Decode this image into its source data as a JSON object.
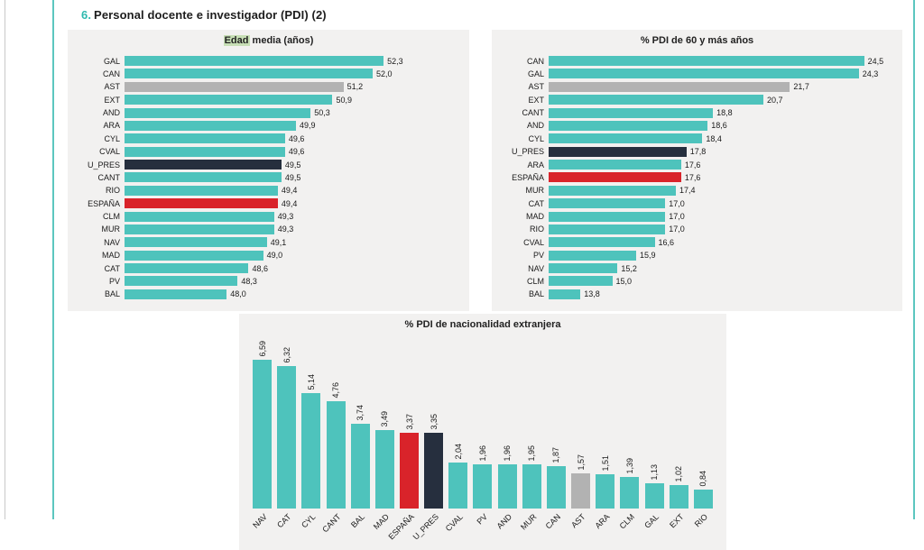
{
  "page": {
    "heading_number": "6.",
    "heading_text": "Personal docente e investigador (PDI) (2)"
  },
  "colors": {
    "teal": "#4ec3bc",
    "red": "#d9232a",
    "dark": "#262f3e",
    "gray": "#b2b2b2",
    "panel_bg": "#f2f1f0",
    "accent_teal": "#2fb9ae",
    "title_highlight_bg": "#c7dfb5"
  },
  "chart_data": [
    {
      "type": "bar",
      "orientation": "horizontal",
      "title": "Edad media (años)",
      "title_highlight": "Edad",
      "title_rest": " media (años)",
      "categories": [
        "GAL",
        "CAN",
        "AST",
        "EXT",
        "AND",
        "ARA",
        "CYL",
        "CVAL",
        "U_PRES",
        "CANT",
        "RIO",
        "ESPAÑA",
        "CLM",
        "MUR",
        "NAV",
        "MAD",
        "CAT",
        "PV",
        "BAL"
      ],
      "values": [
        52.3,
        52.0,
        51.2,
        50.9,
        50.3,
        49.9,
        49.6,
        49.6,
        49.5,
        49.5,
        49.4,
        49.4,
        49.3,
        49.3,
        49.1,
        49.0,
        48.6,
        48.3,
        48.0
      ],
      "value_labels": [
        "52,3",
        "52,0",
        "51,2",
        "50,9",
        "50,3",
        "49,9",
        "49,6",
        "49,6",
        "49,5",
        "49,5",
        "49,4",
        "49,4",
        "49,3",
        "49,3",
        "49,1",
        "49,0",
        "48,6",
        "48,3",
        "48,0"
      ],
      "bar_colors": [
        "teal",
        "teal",
        "gray",
        "teal",
        "teal",
        "teal",
        "teal",
        "teal",
        "dark",
        "teal",
        "teal",
        "red",
        "teal",
        "teal",
        "teal",
        "teal",
        "teal",
        "teal",
        "teal"
      ],
      "xlim": [
        45.2,
        54.4
      ],
      "grid": false,
      "legend": false
    },
    {
      "type": "bar",
      "orientation": "horizontal",
      "title": "% PDI de 60 y más años",
      "categories": [
        "CAN",
        "GAL",
        "AST",
        "EXT",
        "CANT",
        "AND",
        "CYL",
        "U_PRES",
        "ARA",
        "ESPAÑA",
        "MUR",
        "CAT",
        "MAD",
        "RIO",
        "CVAL",
        "PV",
        "NAV",
        "CLM",
        "BAL"
      ],
      "values": [
        24.5,
        24.3,
        21.7,
        20.7,
        18.8,
        18.6,
        18.4,
        17.8,
        17.6,
        17.6,
        17.4,
        17.0,
        17.0,
        17.0,
        16.6,
        15.9,
        15.2,
        15.0,
        13.8
      ],
      "value_labels": [
        "24,5",
        "24,3",
        "21,7",
        "20,7",
        "18,8",
        "18,6",
        "18,4",
        "17,8",
        "17,6",
        "17,6",
        "17,4",
        "17,0",
        "17,0",
        "17,0",
        "16,6",
        "15,9",
        "15,2",
        "15,0",
        "13,8"
      ],
      "bar_colors": [
        "teal",
        "teal",
        "gray",
        "teal",
        "teal",
        "teal",
        "teal",
        "dark",
        "teal",
        "red",
        "teal",
        "teal",
        "teal",
        "teal",
        "teal",
        "teal",
        "teal",
        "teal",
        "teal"
      ],
      "xlim": [
        12.6,
        25.6
      ],
      "grid": false,
      "legend": false
    },
    {
      "type": "bar",
      "orientation": "vertical",
      "title": "% PDI de nacionalidad extranjera",
      "categories": [
        "NAV",
        "CAT",
        "CYL",
        "CANT",
        "BAL",
        "MAD",
        "ESPAÑA",
        "U_PRES",
        "CVAL",
        "PV",
        "AND",
        "MUR",
        "CAN",
        "AST",
        "ARA",
        "CLM",
        "GAL",
        "EXT",
        "RIO"
      ],
      "values": [
        6.59,
        6.32,
        5.14,
        4.76,
        3.74,
        3.49,
        3.37,
        3.35,
        2.04,
        1.96,
        1.96,
        1.95,
        1.87,
        1.57,
        1.51,
        1.39,
        1.13,
        1.02,
        0.84
      ],
      "value_labels": [
        "6,59",
        "6,32",
        "5,14",
        "4,76",
        "3,74",
        "3,49",
        "3,37",
        "3,35",
        "2,04",
        "1,96",
        "1,96",
        "1,95",
        "1,87",
        "1,57",
        "1,51",
        "1,39",
        "1,13",
        "1,02",
        "0,84"
      ],
      "bar_colors": [
        "teal",
        "teal",
        "teal",
        "teal",
        "teal",
        "teal",
        "red",
        "dark",
        "teal",
        "teal",
        "teal",
        "teal",
        "teal",
        "gray",
        "teal",
        "teal",
        "teal",
        "teal",
        "teal"
      ],
      "ylim": [
        0,
        7.2
      ],
      "grid": false,
      "legend": false
    }
  ]
}
